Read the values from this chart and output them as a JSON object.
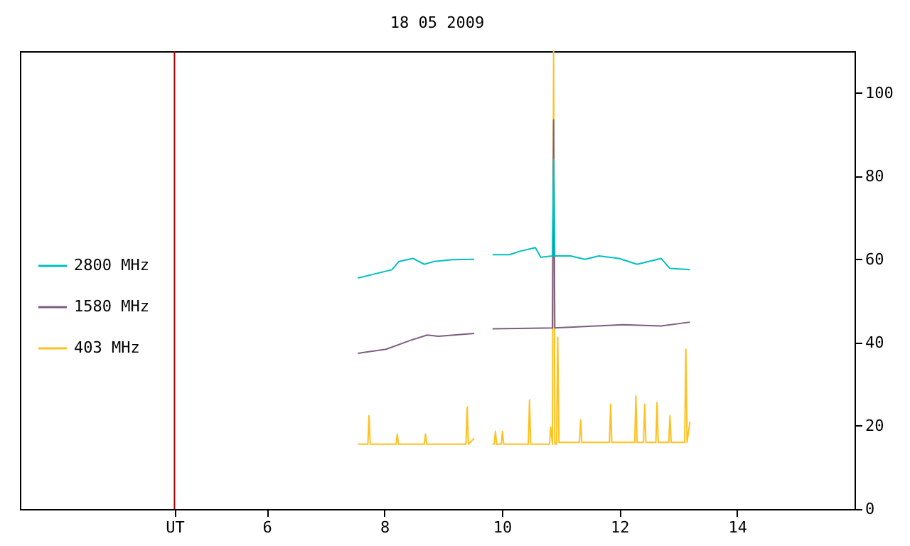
{
  "chart_data": {
    "type": "line",
    "title": "18 05 2009",
    "xlim": [
      1.8,
      16
    ],
    "ylim": [
      0,
      110
    ],
    "xticks": [
      {
        "value": 4.43,
        "label": "UT"
      },
      6,
      8,
      10,
      12,
      14
    ],
    "yticks": [
      0,
      20,
      40,
      60,
      80,
      100
    ],
    "grid": false,
    "legend": "left",
    "line_style": "solid",
    "marker": "none",
    "ref_lines": [
      {
        "axis": "x",
        "value": 4.43,
        "color": "#a00000"
      }
    ],
    "series": [
      {
        "name": "2800 MHz",
        "color": "#00c0c0",
        "x": [
          7.55,
          8.13,
          8.25,
          8.49,
          8.68,
          8.85,
          9.16,
          9.53,
          9.7,
          9.84,
          10.13,
          10.3,
          10.57,
          10.66,
          10.86,
          10.88,
          10.9,
          11.17,
          11.41,
          11.65,
          11.99,
          12.3,
          12.71,
          12.86,
          13.2
        ],
        "values": [
          55.5,
          57.5,
          59.5,
          60.2,
          58.8,
          59.5,
          59.9,
          60,
          null,
          61.1,
          61.1,
          61.9,
          62.8,
          60.5,
          60.8,
          84,
          60.8,
          60.8,
          60,
          60.8,
          60.2,
          58.8,
          60.2,
          57.8,
          57.5
        ]
      },
      {
        "name": "1580 MHz",
        "color": "#7b5f80",
        "x": [
          7.55,
          8.03,
          8.44,
          8.73,
          8.92,
          9.53,
          9.7,
          9.84,
          10.86,
          10.88,
          10.9,
          12.06,
          12.71,
          13.2
        ],
        "values": [
          37.4,
          38.4,
          40.5,
          41.8,
          41.5,
          42.2,
          null,
          43.3,
          43.5,
          93.5,
          43.5,
          44.3,
          44,
          44.9
        ]
      },
      {
        "name": "403 MHz",
        "color": "#ffc020",
        "x": [
          7.55,
          7.72,
          7.74,
          7.76,
          8.2,
          8.22,
          8.24,
          8.68,
          8.7,
          8.72,
          9.39,
          9.41,
          9.43,
          9.53,
          9.7,
          9.84,
          9.87,
          9.89,
          9.91,
          9.99,
          10.01,
          10.03,
          10.45,
          10.47,
          10.49,
          10.81,
          10.83,
          10.86,
          10.88,
          10.9,
          10.93,
          10.95,
          10.97,
          11.32,
          11.34,
          11.36,
          11.83,
          11.85,
          11.87,
          12.26,
          12.28,
          12.3,
          12.41,
          12.43,
          12.45,
          12.62,
          12.64,
          12.66,
          12.84,
          12.86,
          12.88,
          13.11,
          13.13,
          13.15,
          13.2
        ],
        "values": [
          15.6,
          15.6,
          22.4,
          15.6,
          15.6,
          18,
          15.6,
          15.6,
          18,
          15.6,
          15.6,
          24.5,
          15.6,
          17,
          null,
          15.6,
          15.6,
          18.7,
          15.6,
          15.6,
          18.7,
          15.6,
          15.6,
          26.2,
          15.6,
          15.6,
          19.7,
          15.6,
          110,
          15.6,
          15.6,
          41.3,
          16,
          16,
          21.4,
          16,
          16,
          25.2,
          16,
          16,
          27.2,
          16,
          16,
          25.2,
          16,
          16,
          25.6,
          16,
          16,
          22.4,
          16,
          16,
          38.4,
          16,
          21
        ]
      }
    ]
  }
}
